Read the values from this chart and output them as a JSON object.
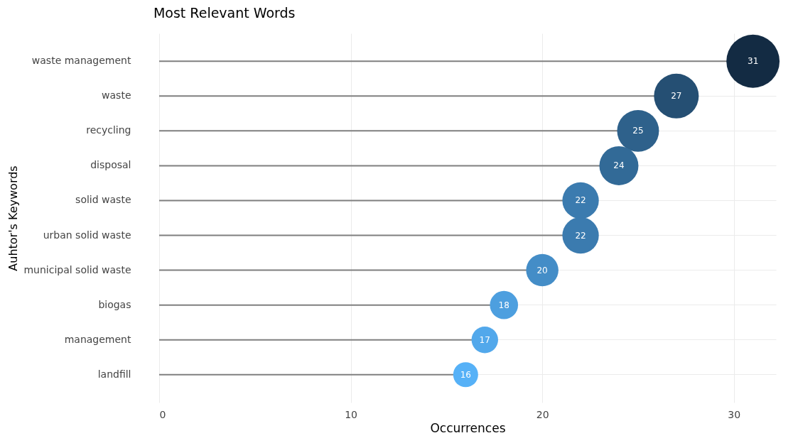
{
  "chart_data": {
    "type": "lollipop",
    "orientation": "horizontal",
    "title": "Most Relevant Words",
    "xlabel": "Occurrences",
    "ylabel": "Auhtor's Keywords",
    "categories": [
      "waste management",
      "waste",
      "recycling",
      "disposal",
      "solid waste",
      "urban solid waste",
      "municipal solid waste",
      "biogas",
      "management",
      "landfill"
    ],
    "values": [
      31,
      27,
      25,
      24,
      22,
      22,
      20,
      18,
      17,
      16
    ],
    "sizes": [
      1,
      0.71,
      0.62,
      0.54,
      0.47,
      0.47,
      0.37,
      0.28,
      0.25,
      0.22
    ],
    "colors": [
      "#132b43",
      "#254f73",
      "#2e618b",
      "#326a97",
      "#3b7baf",
      "#3b7baf",
      "#448dc7",
      "#4d9fdf",
      "#52a8eb",
      "#56b1f7"
    ],
    "xlim": [
      0,
      32.2
    ],
    "xticks": [
      0,
      10,
      20,
      30
    ],
    "grid": true,
    "data_labels": true,
    "marker": "circle"
  }
}
